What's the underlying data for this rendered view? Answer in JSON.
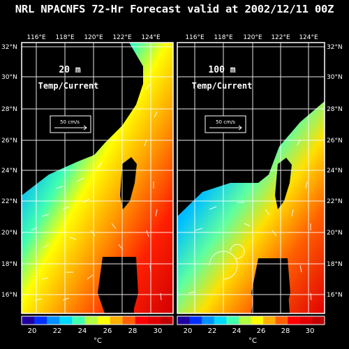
{
  "title": "NRL NPACNFS 72-Hr Forecast valid at 2002/12/11 00Z",
  "x_ticks": [
    "116°E",
    "118°E",
    "120°E",
    "122°E",
    "124°E"
  ],
  "y_ticks": [
    "32°N",
    "30°N",
    "28°N",
    "26°N",
    "24°N",
    "22°N",
    "20°N",
    "18°N",
    "16°N"
  ],
  "panels": [
    {
      "depth_label": "20 m",
      "variable_label": "Temp/Current",
      "vector_scale_label": "50 cm/s"
    },
    {
      "depth_label": "100 m",
      "variable_label": "Temp/Current",
      "vector_scale_label": "50 cm/s"
    }
  ],
  "colorbar": {
    "ticks": [
      "20",
      "22",
      "24",
      "26",
      "28",
      "30"
    ],
    "unit": "°C",
    "min": 19,
    "max": 31,
    "colors": [
      "#2000a0",
      "#0030ff",
      "#0090ff",
      "#00d8ff",
      "#40ffb0",
      "#b0ff40",
      "#ffff00",
      "#ffb000",
      "#ff6000",
      "#ff0000",
      "#e00000",
      "#c00000"
    ]
  }
}
